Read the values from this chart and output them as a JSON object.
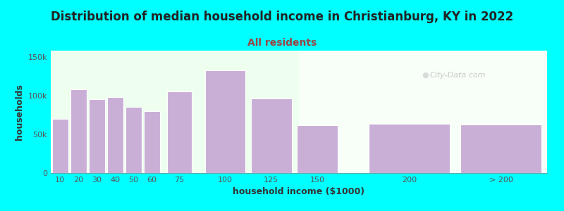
{
  "title": "Distribution of median household income in Christianburg, KY in 2022",
  "subtitle": "All residents",
  "xlabel": "household income ($1000)",
  "ylabel": "households",
  "background_color": "#00FFFF",
  "bar_color": "#c9aed6",
  "bar_edge_color": "#ffffff",
  "categories": [
    "10",
    "20",
    "30",
    "40",
    "50",
    "60",
    "75",
    "100",
    "125",
    "150",
    "200",
    "> 200"
  ],
  "values": [
    70000,
    108000,
    95000,
    98000,
    85000,
    80000,
    105000,
    133000,
    96000,
    62000,
    64000,
    63000
  ],
  "bar_lefts": [
    5,
    15,
    25,
    35,
    45,
    55,
    67.5,
    87.5,
    112.5,
    137.5,
    175,
    225
  ],
  "bar_widths": [
    10,
    10,
    10,
    10,
    10,
    10,
    15,
    25,
    25,
    25,
    50,
    50
  ],
  "xtick_labels": [
    "10",
    "20",
    "30",
    "40",
    "50",
    "60",
    "75",
    "100",
    "125",
    "150",
    "200",
    "> 200"
  ],
  "yticks": [
    0,
    50000,
    100000,
    150000
  ],
  "ytick_labels": [
    "0",
    "50k",
    "100k",
    "150k"
  ],
  "ylim": [
    0,
    158000
  ],
  "xlim": [
    5,
    275
  ],
  "title_fontsize": 12,
  "subtitle_fontsize": 10,
  "axis_label_fontsize": 9,
  "tick_fontsize": 8,
  "title_color": "#222222",
  "subtitle_color": "#994444",
  "axis_label_color": "#333333",
  "tick_color": "#555555",
  "watermark_text": "City-Data.com",
  "gradient_split": 140
}
